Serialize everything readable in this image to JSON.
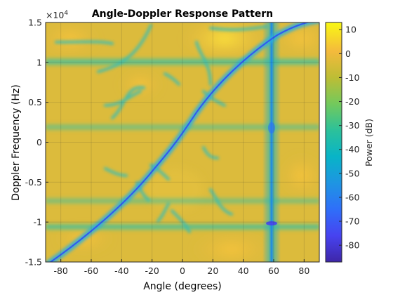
{
  "chart_data": {
    "type": "heatmap",
    "title": "Angle-Doppler Response Pattern",
    "xlabel": "Angle (degrees)",
    "ylabel": "Doppler Frequency (Hz)",
    "colorbar_label": "Power (dB)",
    "xlim": [
      -90,
      90
    ],
    "ylim": [
      -15000,
      15000
    ],
    "clim": [
      -87,
      13
    ],
    "y_exponent_label": "×10",
    "y_exponent_power": "4",
    "x_ticks": [
      {
        "value": -80,
        "label": "-80"
      },
      {
        "value": -60,
        "label": "-60"
      },
      {
        "value": -40,
        "label": "-40"
      },
      {
        "value": -20,
        "label": "-20"
      },
      {
        "value": 0,
        "label": "0"
      },
      {
        "value": 20,
        "label": "20"
      },
      {
        "value": 40,
        "label": "40"
      },
      {
        "value": 60,
        "label": "60"
      },
      {
        "value": 80,
        "label": "80"
      }
    ],
    "y_ticks": [
      {
        "value": -15000,
        "label": "-1.5"
      },
      {
        "value": -10000,
        "label": "-1"
      },
      {
        "value": -5000,
        "label": "-0.5"
      },
      {
        "value": 0,
        "label": "0"
      },
      {
        "value": 5000,
        "label": "0.5"
      },
      {
        "value": 10000,
        "label": "1"
      },
      {
        "value": 15000,
        "label": "1.5"
      }
    ],
    "colorbar_ticks": [
      {
        "value": 10,
        "label": "10"
      },
      {
        "value": 0,
        "label": "0"
      },
      {
        "value": -10,
        "label": "-10"
      },
      {
        "value": -20,
        "label": "-20"
      },
      {
        "value": -30,
        "label": "-30"
      },
      {
        "value": -40,
        "label": "-40"
      },
      {
        "value": -50,
        "label": "-50"
      },
      {
        "value": -60,
        "label": "-60"
      },
      {
        "value": -70,
        "label": "-70"
      },
      {
        "value": -80,
        "label": "-80"
      }
    ],
    "clutter_ridge": {
      "description_points": [
        [
          -90,
          -15000
        ],
        [
          -40,
          -10000
        ],
        [
          -20,
          -5200
        ],
        [
          0,
          0
        ],
        [
          20,
          5000
        ],
        [
          40,
          9500
        ],
        [
          60,
          13000
        ],
        [
          80,
          15000
        ]
      ]
    },
    "jammer_angle": 60,
    "grid": true
  }
}
